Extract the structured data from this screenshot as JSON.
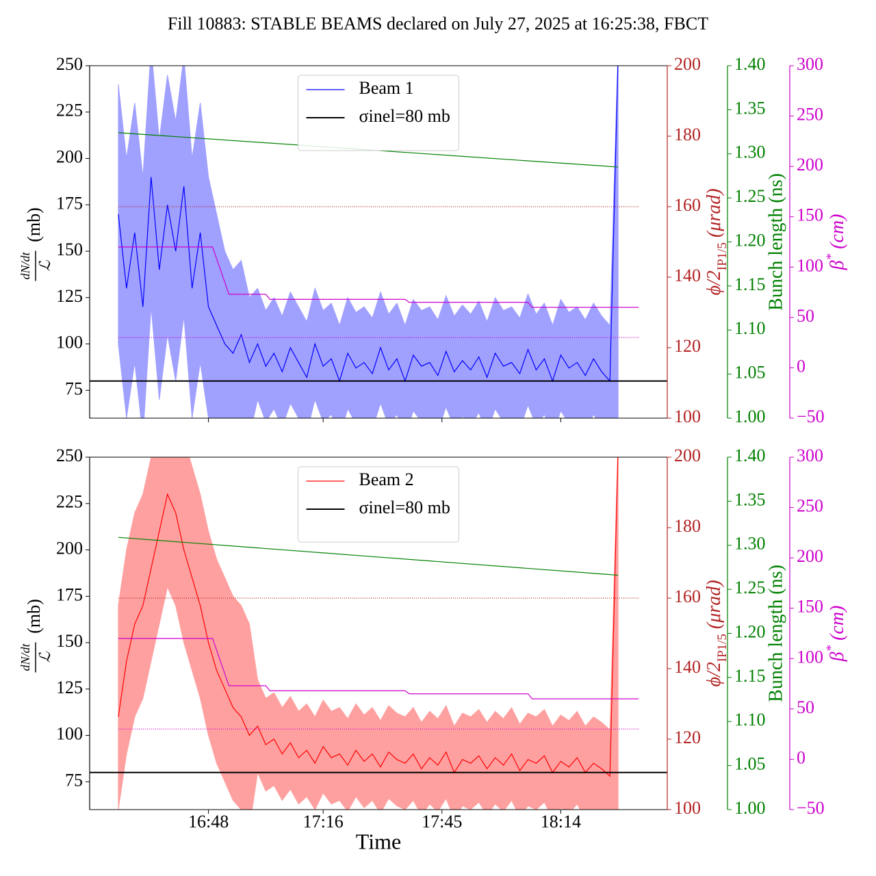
{
  "title": "Fill 10883: STABLE BEAMS declared on July 27, 2025 at 16:25:38, FBCT",
  "chart_data": [
    {
      "type": "line",
      "legend": "upper center",
      "xlim": [
        "16:19",
        "18:40"
      ],
      "xticks": [
        "16:48",
        "17:16",
        "17:45",
        "18:14"
      ],
      "xtick_labels": false,
      "ylim": [
        60,
        250
      ],
      "yticks": [
        75,
        100,
        125,
        150,
        175,
        200,
        225,
        250
      ],
      "y2lim": [
        100,
        200
      ],
      "y2ticks": [
        100,
        120,
        140,
        160,
        180,
        200
      ],
      "y2color": "#b22222",
      "y3lim": [
        1,
        1.4
      ],
      "y3ticks": [
        {
          "value": 1,
          "label": "1.00"
        },
        {
          "value": 1.05,
          "label": "1.05"
        },
        {
          "value": 1.1,
          "label": "1.10"
        },
        {
          "value": 1.15,
          "label": "1.15"
        },
        {
          "value": 1.2,
          "label": "1.20"
        },
        {
          "value": 1.25,
          "label": "1.25"
        },
        {
          "value": 1.3,
          "label": "1.30"
        },
        {
          "value": 1.35,
          "label": "1.35"
        },
        {
          "value": 1.4,
          "label": "1.40"
        }
      ],
      "y3color": "#008000",
      "y4lim": [
        -50,
        300
      ],
      "y4ticks": [
        {
          "value": -50,
          "label": "−50"
        },
        0,
        50,
        100,
        150,
        200,
        250,
        300
      ],
      "y4color": "#cc00cc",
      "ylabel": [
        "dN/dt",
        "ℒ",
        "(mb)"
      ],
      "y2label": [
        "ϕ/2",
        "IP1/5",
        " (μrad)"
      ],
      "y3label": "Bunch length (ns)",
      "y4label": [
        "β",
        "*",
        " (cm)"
      ],
      "series": [
        {
          "name": "Beam 1",
          "color": "#0000ff",
          "x": [
            "16:26",
            "16:28",
            "16:30",
            "16:32",
            "16:34",
            "16:36",
            "16:38",
            "16:40",
            "16:42",
            "16:44",
            "16:46",
            "16:48",
            "16:50",
            "16:52",
            "16:54",
            "16:56",
            "16:58",
            "17:00",
            "17:02",
            "17:04",
            "17:06",
            "17:08",
            "17:10",
            "17:12",
            "17:14",
            "17:16",
            "17:18",
            "17:20",
            "17:22",
            "17:24",
            "17:26",
            "17:28",
            "17:30",
            "17:32",
            "17:34",
            "17:36",
            "17:38",
            "17:40",
            "17:42",
            "17:44",
            "17:46",
            "17:48",
            "17:50",
            "17:52",
            "17:54",
            "17:56",
            "17:58",
            "18:00",
            "18:02",
            "18:04",
            "18:06",
            "18:08",
            "18:10",
            "18:12",
            "18:14",
            "18:16",
            "18:18",
            "18:20",
            "18:22",
            "18:24",
            "18:26",
            "18:28"
          ],
          "values": [
            170,
            130,
            160,
            120,
            190,
            140,
            175,
            150,
            185,
            130,
            160,
            120,
            110,
            100,
            95,
            105,
            90,
            100,
            88,
            95,
            85,
            98,
            90,
            82,
            100,
            88,
            92,
            80,
            95,
            87,
            90,
            84,
            98,
            86,
            92,
            80,
            94,
            88,
            90,
            83,
            96,
            85,
            91,
            86,
            93,
            82,
            95,
            88,
            90,
            84,
            97,
            86,
            92,
            80,
            94,
            87,
            90,
            83,
            92,
            85,
            80,
            255
          ],
          "band": {
            "color": "#a0a0ff",
            "low": [
              100,
              60,
              90,
              50,
              120,
              70,
              105,
              80,
              115,
              60,
              90,
              60,
              60,
              55,
              55,
              60,
              50,
              70,
              58,
              65,
              55,
              68,
              60,
              52,
              70,
              58,
              62,
              50,
              65,
              57,
              60,
              54,
              68,
              56,
              62,
              50,
              64,
              58,
              60,
              53,
              66,
              55,
              61,
              56,
              63,
              52,
              65,
              58,
              60,
              54,
              67,
              56,
              62,
              50,
              64,
              57,
              60,
              53,
              62,
              55,
              50,
              60
            ],
            "high": [
              240,
              200,
              230,
              190,
              260,
              210,
              245,
              220,
              255,
              200,
              230,
              190,
              170,
              150,
              140,
              145,
              125,
              130,
              118,
              125,
              115,
              128,
              120,
              112,
              130,
              118,
              122,
              110,
              125,
              117,
              120,
              114,
              128,
              116,
              122,
              110,
              124,
              118,
              120,
              113,
              126,
              115,
              121,
              116,
              123,
              112,
              125,
              118,
              120,
              114,
              127,
              116,
              122,
              110,
              124,
              117,
              120,
              113,
              122,
              115,
              110,
              260
            ]
          }
        },
        {
          "name": "σinel=80 mb",
          "color": "#000000",
          "x": [
            "16:19",
            "18:40"
          ],
          "values": [
            80,
            80
          ],
          "width": 2
        },
        {
          "axis": "y2",
          "color": "#b22222",
          "style": "dotted",
          "x": [
            "16:26",
            "18:33"
          ],
          "values": [
            160,
            160
          ]
        },
        {
          "axis": "y4",
          "color": "#cc00cc",
          "style": "dotted",
          "x": [
            "16:26",
            "18:33"
          ],
          "values": [
            30,
            30
          ]
        },
        {
          "axis": "y3",
          "color": "#008000",
          "x": [
            "16:26",
            "18:28"
          ],
          "values": [
            1.324,
            1.285
          ]
        },
        {
          "axis": "y4",
          "color": "#cc00cc",
          "x": [
            "16:26",
            "16:49",
            "16:53",
            "17:02",
            "17:03",
            "17:36",
            "17:37",
            "18:06",
            "18:07",
            "18:33"
          ],
          "values": [
            120,
            120,
            73,
            73,
            68,
            68,
            65,
            65,
            60,
            60
          ]
        }
      ]
    },
    {
      "type": "line",
      "legend": "upper center",
      "xlim": [
        "16:19",
        "18:40"
      ],
      "xticks": [
        "16:48",
        "17:16",
        "17:45",
        "18:14"
      ],
      "xtick_labels": true,
      "xlabel": "Time",
      "ylim": [
        60,
        250
      ],
      "yticks": [
        75,
        100,
        125,
        150,
        175,
        200,
        225,
        250
      ],
      "y2lim": [
        100,
        200
      ],
      "y2ticks": [
        100,
        120,
        140,
        160,
        180,
        200
      ],
      "y2color": "#b22222",
      "y3lim": [
        1,
        1.4
      ],
      "y3ticks": [
        {
          "value": 1,
          "label": "1.00"
        },
        {
          "value": 1.05,
          "label": "1.05"
        },
        {
          "value": 1.1,
          "label": "1.10"
        },
        {
          "value": 1.15,
          "label": "1.15"
        },
        {
          "value": 1.2,
          "label": "1.20"
        },
        {
          "value": 1.25,
          "label": "1.25"
        },
        {
          "value": 1.3,
          "label": "1.30"
        },
        {
          "value": 1.35,
          "label": "1.35"
        },
        {
          "value": 1.4,
          "label": "1.40"
        }
      ],
      "y3color": "#008000",
      "y4lim": [
        -50,
        300
      ],
      "y4ticks": [
        {
          "value": -50,
          "label": "−50"
        },
        0,
        50,
        100,
        150,
        200,
        250,
        300
      ],
      "y4color": "#cc00cc",
      "ylabel": [
        "dN/dt",
        "ℒ",
        "(mb)"
      ],
      "y2label": [
        "ϕ/2",
        "IP1/5",
        " (μrad)"
      ],
      "y3label": "Bunch length (ns)",
      "y4label": [
        "β",
        "*",
        " (cm)"
      ],
      "series": [
        {
          "name": "Beam 2",
          "color": "#ff0000",
          "x": [
            "16:26",
            "16:28",
            "16:30",
            "16:32",
            "16:34",
            "16:36",
            "16:38",
            "16:40",
            "16:42",
            "16:44",
            "16:46",
            "16:48",
            "16:50",
            "16:52",
            "16:54",
            "16:56",
            "16:58",
            "17:00",
            "17:02",
            "17:04",
            "17:06",
            "17:08",
            "17:10",
            "17:12",
            "17:14",
            "17:16",
            "17:18",
            "17:20",
            "17:22",
            "17:24",
            "17:26",
            "17:28",
            "17:30",
            "17:32",
            "17:34",
            "17:36",
            "17:38",
            "17:40",
            "17:42",
            "17:44",
            "17:46",
            "17:48",
            "17:50",
            "17:52",
            "17:54",
            "17:56",
            "17:58",
            "18:00",
            "18:02",
            "18:04",
            "18:06",
            "18:08",
            "18:10",
            "18:12",
            "18:14",
            "18:16",
            "18:18",
            "18:20",
            "18:22",
            "18:24",
            "18:26",
            "18:28"
          ],
          "values": [
            110,
            140,
            160,
            170,
            190,
            210,
            230,
            220,
            200,
            185,
            170,
            150,
            135,
            125,
            115,
            110,
            100,
            105,
            95,
            98,
            90,
            96,
            88,
            92,
            85,
            94,
            88,
            90,
            84,
            92,
            86,
            90,
            83,
            91,
            87,
            85,
            90,
            82,
            88,
            84,
            91,
            80,
            87,
            85,
            89,
            82,
            88,
            84,
            90,
            81,
            87,
            85,
            89,
            80,
            86,
            83,
            88,
            80,
            85,
            82,
            78,
            255
          ],
          "band": {
            "color": "#ffa0a0",
            "low": [
              60,
              90,
              110,
              120,
              140,
              160,
              180,
              170,
              150,
              135,
              120,
              100,
              85,
              75,
              65,
              60,
              50,
              80,
              70,
              73,
              65,
              71,
              63,
              67,
              60,
              69,
              63,
              65,
              59,
              67,
              61,
              65,
              58,
              66,
              62,
              60,
              65,
              57,
              63,
              59,
              66,
              55,
              62,
              60,
              64,
              57,
              63,
              59,
              65,
              56,
              62,
              60,
              64,
              55,
              61,
              58,
              63,
              55,
              60,
              57,
              53,
              60
            ],
            "high": [
              170,
              200,
              220,
              230,
              250,
              270,
              290,
              280,
              260,
              245,
              230,
              210,
              195,
              185,
              175,
              170,
              160,
              130,
              120,
              123,
              115,
              121,
              113,
              117,
              110,
              119,
              113,
              115,
              109,
              117,
              111,
              115,
              108,
              116,
              112,
              110,
              115,
              107,
              113,
              109,
              116,
              105,
              112,
              110,
              114,
              107,
              113,
              109,
              115,
              106,
              112,
              110,
              114,
              105,
              111,
              108,
              113,
              105,
              110,
              107,
              103,
              260
            ]
          }
        },
        {
          "name": "σinel=80 mb",
          "color": "#000000",
          "x": [
            "16:19",
            "18:40"
          ],
          "values": [
            80,
            80
          ],
          "width": 2
        },
        {
          "axis": "y2",
          "color": "#b22222",
          "style": "dotted",
          "x": [
            "16:26",
            "18:33"
          ],
          "values": [
            160,
            160
          ]
        },
        {
          "axis": "y4",
          "color": "#cc00cc",
          "style": "dotted",
          "x": [
            "16:26",
            "18:33"
          ],
          "values": [
            30,
            30
          ]
        },
        {
          "axis": "y3",
          "color": "#008000",
          "x": [
            "16:26",
            "18:28"
          ],
          "values": [
            1.309,
            1.266
          ]
        },
        {
          "axis": "y4",
          "color": "#cc00cc",
          "x": [
            "16:26",
            "16:49",
            "16:53",
            "17:02",
            "17:03",
            "17:36",
            "17:37",
            "18:06",
            "18:07",
            "18:33"
          ],
          "values": [
            120,
            120,
            73,
            73,
            68,
            68,
            65,
            65,
            60,
            60
          ]
        }
      ]
    }
  ]
}
